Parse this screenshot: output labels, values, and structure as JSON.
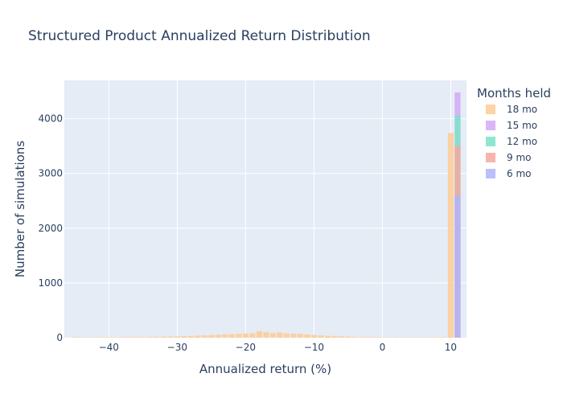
{
  "chart_data": {
    "type": "bar",
    "subtype": "overlaid-histogram",
    "title": "Structured Product Annualized Return Distribution",
    "xlabel": "Annualized return (%)",
    "ylabel": "Number of simulations",
    "xlim": [
      -46.5,
      12.3
    ],
    "ylim": [
      0,
      4700
    ],
    "x_ticks": [
      -40,
      -30,
      -20,
      -10,
      0,
      10
    ],
    "x_tick_labels": [
      "−40",
      "−30",
      "−20",
      "−10",
      "0",
      "10"
    ],
    "y_ticks": [
      0,
      1000,
      2000,
      3000,
      4000
    ],
    "y_tick_labels": [
      "0",
      "1000",
      "2000",
      "3000",
      "4000"
    ],
    "grid": true,
    "legend_position": "right",
    "legend_title": "Months held",
    "bin_width": 1,
    "series": [
      {
        "name": "18 mo",
        "color": "#FECB94",
        "bins": [
          {
            "x": -45,
            "y": 10
          },
          {
            "x": -44,
            "y": 8
          },
          {
            "x": -43,
            "y": 8
          },
          {
            "x": -42,
            "y": 8
          },
          {
            "x": -41,
            "y": 10
          },
          {
            "x": -40,
            "y": 10
          },
          {
            "x": -39,
            "y": 8
          },
          {
            "x": -38,
            "y": 10
          },
          {
            "x": -37,
            "y": 10
          },
          {
            "x": -36,
            "y": 12
          },
          {
            "x": -35,
            "y": 12
          },
          {
            "x": -34,
            "y": 15
          },
          {
            "x": -33,
            "y": 18
          },
          {
            "x": -32,
            "y": 20
          },
          {
            "x": -31,
            "y": 22
          },
          {
            "x": -30,
            "y": 25
          },
          {
            "x": -29,
            "y": 28
          },
          {
            "x": -28,
            "y": 32
          },
          {
            "x": -27,
            "y": 38
          },
          {
            "x": -26,
            "y": 42
          },
          {
            "x": -25,
            "y": 48
          },
          {
            "x": -24,
            "y": 55
          },
          {
            "x": -23,
            "y": 60
          },
          {
            "x": -22,
            "y": 65
          },
          {
            "x": -21,
            "y": 72
          },
          {
            "x": -20,
            "y": 78
          },
          {
            "x": -19,
            "y": 82
          },
          {
            "x": -18,
            "y": 120
          },
          {
            "x": -17,
            "y": 100
          },
          {
            "x": -16,
            "y": 85
          },
          {
            "x": -15,
            "y": 95
          },
          {
            "x": -14,
            "y": 80
          },
          {
            "x": -13,
            "y": 75
          },
          {
            "x": -12,
            "y": 70
          },
          {
            "x": -11,
            "y": 60
          },
          {
            "x": -10,
            "y": 50
          },
          {
            "x": -9,
            "y": 42
          },
          {
            "x": -8,
            "y": 35
          },
          {
            "x": -7,
            "y": 30
          },
          {
            "x": -6,
            "y": 25
          },
          {
            "x": -5,
            "y": 20
          },
          {
            "x": -4,
            "y": 15
          },
          {
            "x": -3,
            "y": 12
          },
          {
            "x": -2,
            "y": 10
          },
          {
            "x": -1,
            "y": 10
          },
          {
            "x": 0,
            "y": 8
          },
          {
            "x": 1,
            "y": 8
          },
          {
            "x": 2,
            "y": 8
          },
          {
            "x": 3,
            "y": 8
          },
          {
            "x": 4,
            "y": 8
          },
          {
            "x": 5,
            "y": 8
          },
          {
            "x": 6,
            "y": 8
          },
          {
            "x": 7,
            "y": 8
          },
          {
            "x": 8,
            "y": 8
          },
          {
            "x": 9,
            "y": 8
          },
          {
            "x": 10,
            "y": 3740
          }
        ]
      },
      {
        "name": "15 mo",
        "color": "#D4A8F8",
        "bins": [
          {
            "x": 11,
            "y": 4480
          }
        ]
      },
      {
        "name": "12 mo",
        "color": "#7DE3C8",
        "bins": [
          {
            "x": 11,
            "y": 4060
          }
        ]
      },
      {
        "name": "9 mo",
        "color": "#F6A89B",
        "bins": [
          {
            "x": 11,
            "y": 3500
          }
        ]
      },
      {
        "name": "6 mo",
        "color": "#AFB4FB",
        "bins": [
          {
            "x": 11,
            "y": 2600
          }
        ]
      }
    ]
  }
}
